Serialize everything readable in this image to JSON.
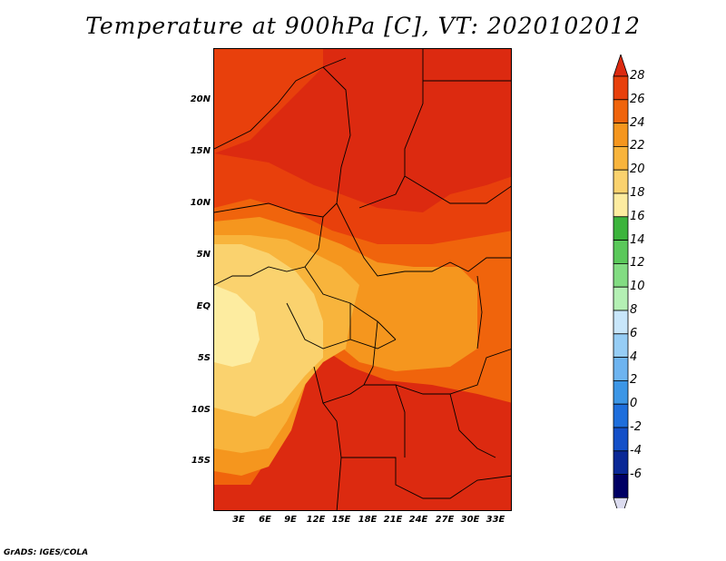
{
  "title": "Temperature at 900hPa [C], VT: 2020102012",
  "footer": "GrADS: IGES/COLA",
  "lat_labels": [
    "20N",
    "15N",
    "10N",
    "5N",
    "EQ",
    "5S",
    "10S",
    "15S"
  ],
  "lon_labels": [
    "3E",
    "6E",
    "9E",
    "12E",
    "15E",
    "18E",
    "21E",
    "24E",
    "27E",
    "30E",
    "33E"
  ],
  "colorbar": {
    "labels": [
      "28",
      "26",
      "24",
      "22",
      "20",
      "18",
      "16",
      "14",
      "12",
      "10",
      "8",
      "6",
      "4",
      "2",
      "0",
      "-2",
      "-4",
      "-6"
    ],
    "colors": [
      "#dc2a10",
      "#e8400c",
      "#f0640c",
      "#f5961e",
      "#f8b43c",
      "#fad26e",
      "#fdeca0",
      "#3cb43c",
      "#5ac85a",
      "#82dc82",
      "#b4f0b4",
      "#c8e6fa",
      "#96cdf5",
      "#6eb4f0",
      "#3c96e6",
      "#1e6edc",
      "#1450c8",
      "#0a2896",
      "#000064",
      "#dcdcf0"
    ]
  },
  "map_colors": {
    "hot": "#dc2a10",
    "warm26": "#e8400c",
    "warm24": "#f0640c",
    "mid22": "#f5961e",
    "mid20": "#f8b43c",
    "cool18": "#fad26e",
    "cool16": "#fdeca0",
    "border": "#000000"
  }
}
